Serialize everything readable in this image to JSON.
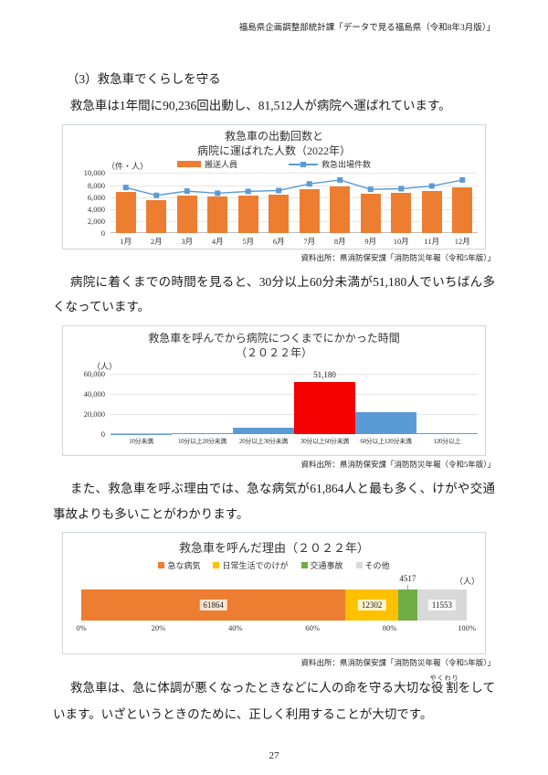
{
  "page": {
    "header": "福島県企画調整部統計課「データで見る福島県（令和8年3月版）」",
    "section_title": "（3）救急車でくらしを守る",
    "para1": "救急車は1年間に90,236回出動し、81,512人が病院へ運ばれています。",
    "para2": "病院に着くまでの時間を見ると、30分以上60分未満が51,180人でいちばん多くなっています。",
    "para3": "また、救急車を呼ぶ理由では、急な病気が61,864人と最も多く、けがや交通事故よりも多いことがわかります。",
    "para4_pre": "救急車は、急に体調が悪くなったときなどに人の命を守る大切な",
    "para4_ruby_base": "役割",
    "para4_ruby_text": "やくわり",
    "para4_post": "をしています。いざというときのために、正しく利用することが大切です。",
    "source1": "資料出所：県消防保安課「消防防災年報（令和5年版）」",
    "source2": "資料出所：県消防保安課「消防防災年報（令和5年版）」",
    "source3": "資料出所：県消防保安課「消防防災年報（令和5年版）」",
    "page_number": "27"
  },
  "colors": {
    "bar_orange": "#ED7D31",
    "line_blue": "#5B9BD5",
    "highlight_red": "#F40000",
    "yellow": "#FFC000",
    "green": "#70AD47",
    "light_gray": "#D9D9D9"
  },
  "chart_data": [
    {
      "type": "bar",
      "subtype": "bar+line-combo",
      "title_line1": "救急車の出動回数と",
      "title_line2": "病院に運ばれた人数（2022年）",
      "unit": "（件・人）",
      "categories": [
        "1月",
        "2月",
        "3月",
        "4月",
        "5月",
        "6月",
        "7月",
        "8月",
        "9月",
        "10月",
        "11月",
        "12月"
      ],
      "series": [
        {
          "name": "搬送人員",
          "render": "bar",
          "color": "#ED7D31",
          "values": [
            6800,
            5500,
            6300,
            6050,
            6300,
            6400,
            7350,
            7850,
            6500,
            6650,
            6950,
            7700
          ]
        },
        {
          "name": "救急出場件数",
          "render": "line",
          "color": "#5B9BD5",
          "values": [
            7550,
            6250,
            6950,
            6600,
            6900,
            7050,
            8150,
            8800,
            7250,
            7350,
            7800,
            8800
          ]
        }
      ],
      "ylim": [
        0,
        10000
      ],
      "yticks": [
        0,
        2000,
        4000,
        6000,
        8000,
        10000
      ],
      "grid": true,
      "legend_position": "top"
    },
    {
      "type": "bar",
      "title_line1": "救急車を呼んでから病院につくまでにかかった時間",
      "title_line2": "（２０２２年）",
      "unit": "（人）",
      "categories": [
        "10分未満",
        "10分以上20分未満",
        "20分以上30分未満",
        "30分以上60分未満",
        "60分以上120分未満",
        "120分以上"
      ],
      "values": [
        100,
        300,
        6000,
        51180,
        21500,
        800
      ],
      "highlight_index": 3,
      "highlight_color": "#F40000",
      "bar_color": "#5B9BD5",
      "data_label": "51,180",
      "ylim": [
        0,
        60000
      ],
      "yticks": [
        0,
        20000,
        40000,
        60000
      ],
      "grid": true
    },
    {
      "type": "bar",
      "subtype": "horizontal-stacked-100pct",
      "title": "救急車を呼んだ理由（２０２２年）",
      "unit": "（人）",
      "segments": [
        {
          "label": "急な病気",
          "value": 61864,
          "color": "#ED7D31",
          "value_label_pos": "inside"
        },
        {
          "label": "日常生活でのけが",
          "value": 12302,
          "color": "#FFC000",
          "value_label_pos": "inside"
        },
        {
          "label": "交通事故",
          "value": 4517,
          "color": "#70AD47",
          "value_label_pos": "above"
        },
        {
          "label": "その他",
          "value": 11553,
          "color": "#D9D9D9",
          "value_label_pos": "inside"
        }
      ],
      "xticks": [
        "0%",
        "20%",
        "40%",
        "60%",
        "80%",
        "100%"
      ],
      "legend_position": "top"
    }
  ]
}
